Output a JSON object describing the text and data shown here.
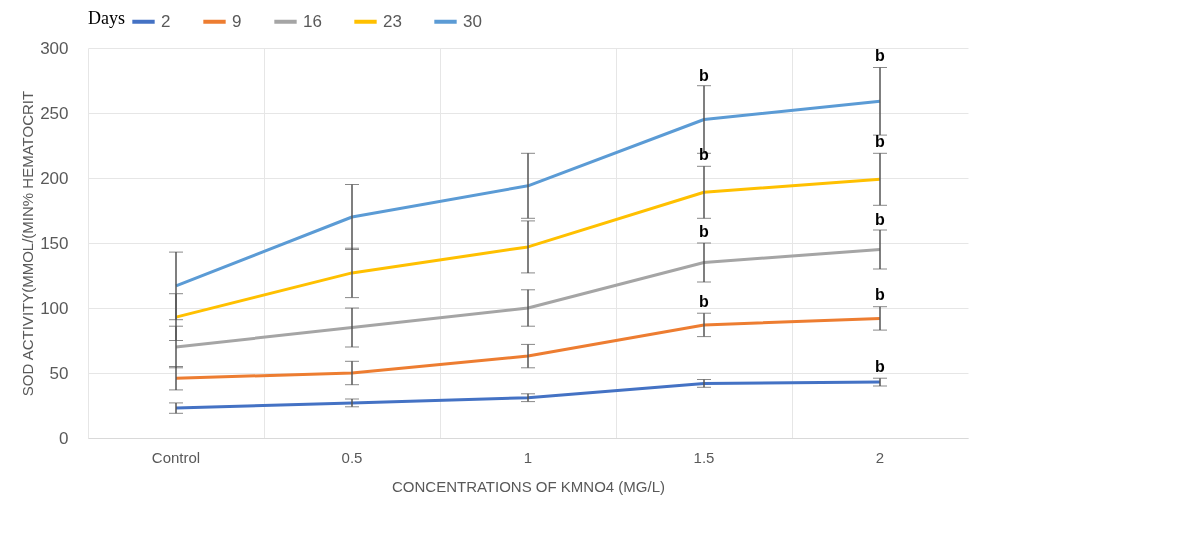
{
  "chart_data": {
    "type": "line",
    "xlabel": "CONCENTRATIONS OF KMNO4 (MG/L)",
    "ylabel": "SOD ACTIVITY(MMOL/(MIN% HEMATOCRIT",
    "legend_title": "Days",
    "legend": "top",
    "grid": true,
    "marker": "none",
    "line_style": "solid",
    "categories": [
      "Control",
      "0.5",
      "1",
      "1.5",
      "2"
    ],
    "ylim": [
      0,
      300
    ],
    "yticks": [
      0,
      50,
      100,
      150,
      200,
      250,
      300
    ],
    "series": [
      {
        "name": "2",
        "color": "#4472c4",
        "values": [
          23,
          27,
          31,
          42,
          43
        ],
        "errors": [
          4,
          3,
          3,
          3,
          3
        ]
      },
      {
        "name": "9",
        "color": "#ed7d31",
        "values": [
          46,
          50,
          63,
          87,
          92
        ],
        "errors": [
          9,
          9,
          9,
          9,
          9
        ]
      },
      {
        "name": "16",
        "color": "#a5a5a5",
        "values": [
          70,
          85,
          100,
          135,
          145
        ],
        "errors": [
          16,
          15,
          14,
          15,
          15
        ]
      },
      {
        "name": "23",
        "color": "#ffc000",
        "values": [
          93,
          127,
          147,
          189,
          199
        ],
        "errors": [
          18,
          19,
          20,
          20,
          20
        ]
      },
      {
        "name": "30",
        "color": "#5b9bd5",
        "values": [
          117,
          170,
          194,
          245,
          259
        ],
        "errors": [
          26,
          25,
          25,
          26,
          26
        ]
      }
    ],
    "annotations": [
      {
        "text": "b",
        "x": "2",
        "y": 47
      },
      {
        "text": "b",
        "x": "1.5",
        "y": 97
      },
      {
        "text": "b",
        "x": "2",
        "y": 102
      },
      {
        "text": "b",
        "x": "1.5",
        "y": 151
      },
      {
        "text": "b",
        "x": "2",
        "y": 160
      },
      {
        "text": "b",
        "x": "1.5",
        "y": 210
      },
      {
        "text": "b",
        "x": "2",
        "y": 220
      },
      {
        "text": "b",
        "x": "1.5",
        "y": 271
      },
      {
        "text": "b",
        "x": "2",
        "y": 286
      }
    ]
  }
}
